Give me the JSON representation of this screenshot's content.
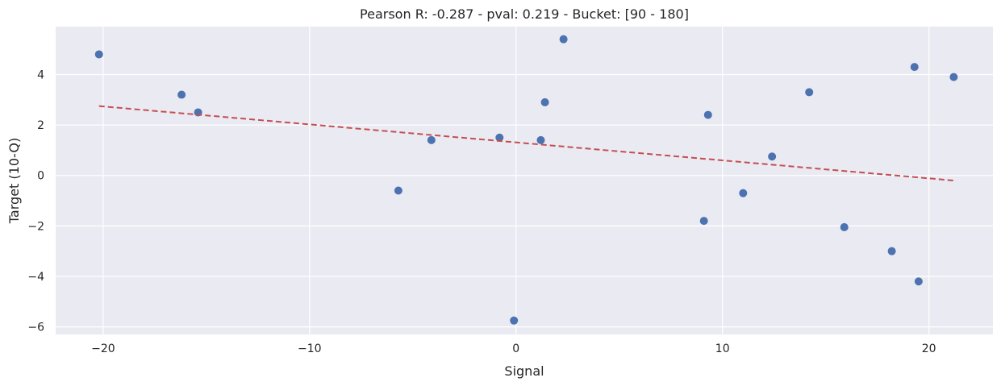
{
  "chart_data": {
    "type": "scatter",
    "title": "Pearson R: -0.287 - pval: 0.219 - Bucket: [90 - 180]",
    "xlabel": "Signal",
    "ylabel": "Target (10-Q)",
    "xlim": [
      -22.3,
      23.1
    ],
    "ylim": [
      -6.3,
      5.9
    ],
    "xticks": [
      -20,
      -10,
      0,
      10,
      20
    ],
    "xtick_labels": [
      "−20",
      "−10",
      "0",
      "10",
      "20"
    ],
    "yticks": [
      -6,
      -4,
      -2,
      0,
      2,
      4
    ],
    "ytick_labels": [
      "−6",
      "−4",
      "−2",
      "0",
      "2",
      "4"
    ],
    "grid": true,
    "background": "#eaeaf2",
    "point_color": "#4c72b0",
    "trend_color": "#c44e52",
    "points": [
      {
        "x": -20.2,
        "y": 4.8
      },
      {
        "x": -16.2,
        "y": 3.2
      },
      {
        "x": -15.4,
        "y": 2.5
      },
      {
        "x": -5.7,
        "y": -0.6
      },
      {
        "x": -4.1,
        "y": 1.4
      },
      {
        "x": -0.8,
        "y": 1.5
      },
      {
        "x": -0.1,
        "y": -5.75
      },
      {
        "x": 1.2,
        "y": 1.4
      },
      {
        "x": 1.4,
        "y": 2.9
      },
      {
        "x": 2.3,
        "y": 5.4
      },
      {
        "x": 9.1,
        "y": -1.8
      },
      {
        "x": 9.3,
        "y": 2.4
      },
      {
        "x": 11.0,
        "y": -0.7
      },
      {
        "x": 12.4,
        "y": 0.75
      },
      {
        "x": 14.2,
        "y": 3.3
      },
      {
        "x": 15.9,
        "y": -2.05
      },
      {
        "x": 18.2,
        "y": -3.0
      },
      {
        "x": 19.3,
        "y": 4.3
      },
      {
        "x": 19.5,
        "y": -4.2
      },
      {
        "x": 21.2,
        "y": 3.9
      }
    ],
    "trend_line": {
      "x": [
        -20.2,
        21.2
      ],
      "y": [
        2.75,
        -0.2
      ]
    }
  }
}
